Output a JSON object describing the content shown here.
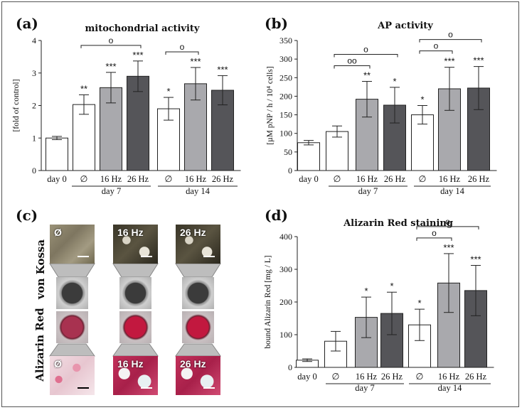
{
  "colors": {
    "day0": "#ffffff",
    "none": "#ffffff",
    "hz16": "#a9a9ad",
    "hz26": "#555559",
    "kossa": "#8a8370",
    "alizarin": "#c2305a"
  },
  "group_labels": {
    "day7": "day 7",
    "day14": "day 14"
  },
  "chart_data": [
    {
      "id": "a",
      "panel_label": "(a)",
      "type": "bar",
      "title": "mitochondrial activity",
      "ylabel": "[fold of control]",
      "ylim": [
        0,
        4
      ],
      "yticks": [
        "0",
        "1",
        "2",
        "3",
        "4"
      ],
      "categories": [
        "day 0",
        "∅",
        "16 Hz",
        "26 Hz",
        "∅",
        "16 Hz",
        "26 Hz"
      ],
      "values": [
        1.0,
        2.03,
        2.55,
        2.9,
        1.9,
        2.67,
        2.47
      ],
      "errors": [
        0.05,
        0.3,
        0.47,
        0.47,
        0.35,
        0.5,
        0.45
      ],
      "significance": [
        "",
        "**",
        "***",
        "***",
        "*",
        "***",
        "***"
      ],
      "brackets": [
        {
          "from": 1,
          "to": 3,
          "label": "o"
        },
        {
          "from": 4,
          "to": 5,
          "label": "o"
        }
      ]
    },
    {
      "id": "b",
      "panel_label": "(b)",
      "type": "bar",
      "title": "AP activity",
      "ylabel": "[µM pNP / h / 10⁴ cells]",
      "ylim": [
        0,
        350
      ],
      "yticks": [
        "0",
        "50",
        "100",
        "150",
        "200",
        "250",
        "300",
        "350"
      ],
      "categories": [
        "day 0",
        "∅",
        "16 Hz",
        "26 Hz",
        "∅",
        "16 Hz",
        "26 Hz"
      ],
      "values": [
        75,
        105,
        192,
        176,
        150,
        220,
        222
      ],
      "errors": [
        6,
        15,
        48,
        48,
        25,
        58,
        58
      ],
      "significance": [
        "",
        "",
        "**",
        "*",
        "*",
        "***",
        "***"
      ],
      "brackets": [
        {
          "from": 1,
          "to": 2,
          "label": "oo"
        },
        {
          "from": 1,
          "to": 3,
          "label": "o"
        },
        {
          "from": 4,
          "to": 5,
          "label": "o"
        },
        {
          "from": 4,
          "to": 6,
          "label": "o"
        }
      ]
    },
    {
      "id": "d",
      "panel_label": "(d)",
      "type": "bar",
      "title": "Alizarin Red staining",
      "ylabel": "bound Alizarin Red [mg / L]",
      "ylim": [
        0,
        400
      ],
      "yticks": [
        "0",
        "100",
        "200",
        "300",
        "400"
      ],
      "categories": [
        "day 0",
        "∅",
        "16 Hz",
        "26 Hz",
        "∅",
        "16 Hz",
        "26 Hz"
      ],
      "values": [
        22,
        80,
        153,
        165,
        130,
        258,
        235
      ],
      "errors": [
        4,
        30,
        62,
        65,
        48,
        90,
        77
      ],
      "significance": [
        "",
        "",
        "*",
        "*",
        "*",
        "***",
        "***"
      ],
      "brackets": [
        {
          "from": 4,
          "to": 5,
          "label": "o"
        },
        {
          "from": 4,
          "to": 6,
          "label": "o"
        }
      ]
    }
  ],
  "panel_c": {
    "panel_label": "(c)",
    "row1_label": "von Kossa",
    "row2_label": "Alizarin Red",
    "columns": [
      "Ø",
      "16 Hz",
      "26 Hz"
    ]
  }
}
